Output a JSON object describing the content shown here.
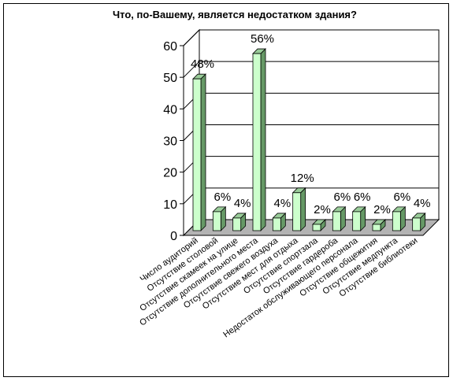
{
  "chart_data": {
    "type": "bar",
    "title": "Что, по-Вашему, является недостатком здания?",
    "xlabel": "",
    "ylabel": "",
    "ylim": [
      0,
      60
    ],
    "yticks": [
      0,
      10,
      20,
      30,
      40,
      50,
      60
    ],
    "grid": true,
    "legend": "none",
    "categories": [
      "Число аудиторий",
      "Отсутствие столовой",
      "Отсутствие скамеек на улице",
      "Отсутствие дополнительного места",
      "Отсутствие свежего воздуха",
      "Отсутствие мест для отдыха",
      "Отсутствие спортзала",
      "Отсутствие гардероба",
      "Недостаток обслуживающего персонала",
      "Отсутствие общежития",
      "Отсутствие медпункта",
      "Отсутствие библиотеки"
    ],
    "values": [
      48,
      6,
      4,
      56,
      4,
      12,
      2,
      6,
      6,
      2,
      6,
      4
    ],
    "data_labels": [
      "48%",
      "6%",
      "4%",
      "56%",
      "4%",
      "12%",
      "2%",
      "6%",
      "6%",
      "2%",
      "6%",
      "4%"
    ],
    "colors": {
      "bar_front": "#ccffcc",
      "bar_side": "#669966",
      "bar_top": "#99cc99",
      "floor": "#b3b3b3",
      "frame": "#000000"
    }
  }
}
